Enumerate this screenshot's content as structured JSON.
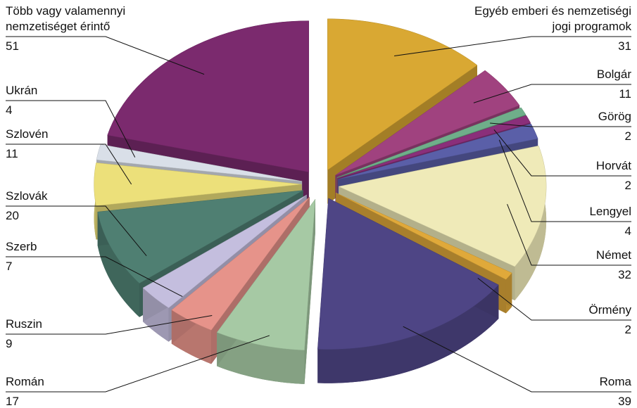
{
  "chart_data": {
    "type": "pie",
    "categories": [
      "Több vagy valamennyi nemzetiséget érintő",
      "Egyéb emberi és nemzetiségi jogi programok",
      "Bolgár",
      "Görög",
      "Horvát",
      "Lengyel",
      "Német",
      "Örmény",
      "Roma",
      "Román",
      "Ruszin",
      "Szerb",
      "Szlovák",
      "Szlovén",
      "Ukrán"
    ],
    "values": [
      51,
      31,
      11,
      2,
      2,
      4,
      32,
      2,
      39,
      17,
      9,
      7,
      20,
      11,
      4
    ],
    "colors": [
      "#7b2a6e",
      "#d9a833",
      "#a0427f",
      "#6fae8a",
      "#8a2f7a",
      "#5a5fa8",
      "#efeab8",
      "#e0a93a",
      "#4e4585",
      "#a6c9a4",
      "#e6938a",
      "#c4bede",
      "#4f7f72",
      "#ece07a",
      "#d9dfe8"
    ]
  }
}
